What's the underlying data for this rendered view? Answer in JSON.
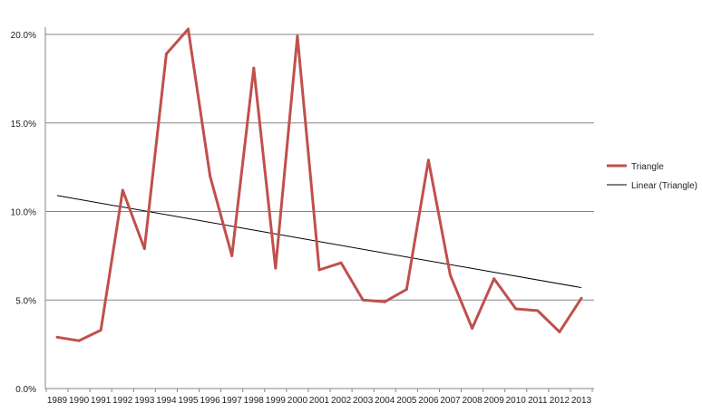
{
  "chart_data": {
    "type": "line",
    "title": "",
    "xlabel": "",
    "ylabel": "",
    "categories": [
      "1989",
      "1990",
      "1991",
      "1992",
      "1993",
      "1994",
      "1995",
      "1996",
      "1997",
      "1998",
      "1999",
      "2000",
      "2001",
      "2002",
      "2003",
      "2004",
      "2005",
      "2006",
      "2007",
      "2008",
      "2009",
      "2010",
      "2011",
      "2012",
      "2013"
    ],
    "ylim": [
      0,
      20
    ],
    "yticks": [
      0,
      5,
      10,
      15,
      20
    ],
    "ytick_labels": [
      "0.0%",
      "5.0%",
      "10.0%",
      "15.0%",
      "20.0%"
    ],
    "grid": true,
    "legend_position": "right",
    "series": [
      {
        "name": "Triangle",
        "color": "#c0504d",
        "values": [
          2.9,
          2.7,
          3.3,
          11.2,
          7.9,
          18.9,
          20.3,
          12.0,
          7.5,
          18.1,
          6.8,
          19.9,
          6.7,
          7.1,
          5.0,
          4.9,
          5.6,
          12.9,
          6.4,
          3.4,
          6.2,
          4.5,
          4.4,
          3.2,
          5.1
        ]
      }
    ],
    "trendlines": [
      {
        "name": "Linear (Triangle)",
        "color": "#000000",
        "type": "linear",
        "start": 10.9,
        "end": 5.7
      }
    ]
  }
}
